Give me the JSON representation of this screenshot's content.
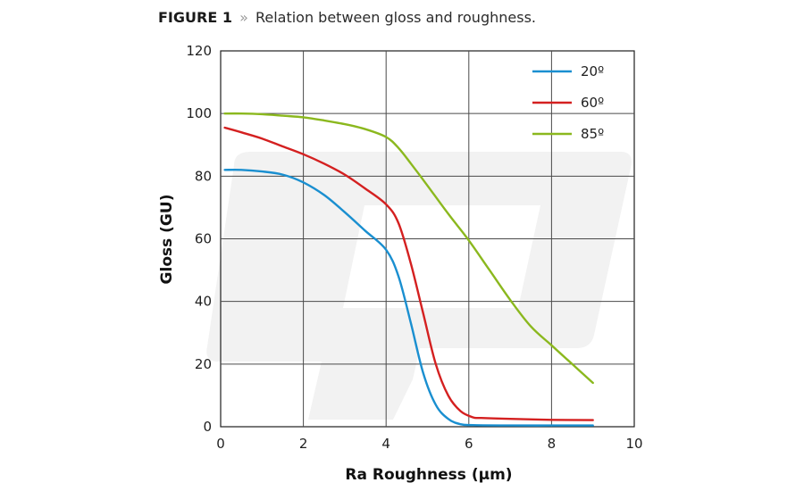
{
  "caption": {
    "label": "FIGURE 1",
    "separator": "»",
    "text": "Relation between gloss and roughness."
  },
  "chart_data": {
    "type": "line",
    "title": "Relation between gloss and roughness.",
    "xlabel": "Ra Roughness (µm)",
    "ylabel": "Gloss (GU)",
    "xlim": [
      0,
      10
    ],
    "ylim": [
      0,
      120
    ],
    "x_ticks": [
      "0",
      "2",
      "4",
      "6",
      "8",
      "10"
    ],
    "y_ticks": [
      "0",
      "20",
      "40",
      "60",
      "80",
      "100",
      "120"
    ],
    "grid": true,
    "legend_position": "top-right",
    "series": [
      {
        "name": "20º",
        "color": "#1a8fd0",
        "x": [
          0.1,
          0.5,
          1.0,
          1.5,
          2.0,
          2.5,
          3.0,
          3.5,
          4.0,
          4.3,
          4.6,
          4.9,
          5.2,
          5.5,
          5.8,
          6.1,
          7.0,
          8.0,
          9.0
        ],
        "y": [
          82,
          82,
          81.5,
          80.5,
          78,
          74,
          68.5,
          62.5,
          56.5,
          48,
          33,
          17,
          7,
          2.5,
          0.8,
          0.5,
          0.4,
          0.4,
          0.4
        ]
      },
      {
        "name": "60º",
        "color": "#d42020",
        "x": [
          0.1,
          0.5,
          1.0,
          1.5,
          2.0,
          2.5,
          3.0,
          3.5,
          4.0,
          4.3,
          4.6,
          4.9,
          5.2,
          5.5,
          5.8,
          6.1,
          6.3,
          7.0,
          8.0,
          9.0
        ],
        "y": [
          95.5,
          94,
          92,
          89.5,
          87,
          84,
          80.5,
          76,
          71,
          65,
          52,
          36,
          20,
          10,
          5,
          3,
          2.8,
          2.5,
          2.2,
          2.1
        ]
      },
      {
        "name": "85º",
        "color": "#8bb81e",
        "x": [
          0.1,
          0.5,
          1.0,
          1.5,
          2.0,
          2.5,
          3.0,
          3.5,
          4.0,
          4.3,
          4.6,
          5.0,
          5.5,
          6.0,
          6.5,
          7.0,
          7.5,
          8.0,
          8.5,
          9.0
        ],
        "y": [
          100,
          100,
          99.8,
          99.3,
          98.8,
          97.8,
          96.6,
          95,
          92.5,
          89,
          84,
          77,
          68,
          59.5,
          50,
          40.5,
          32,
          26,
          20,
          14
        ]
      }
    ]
  }
}
